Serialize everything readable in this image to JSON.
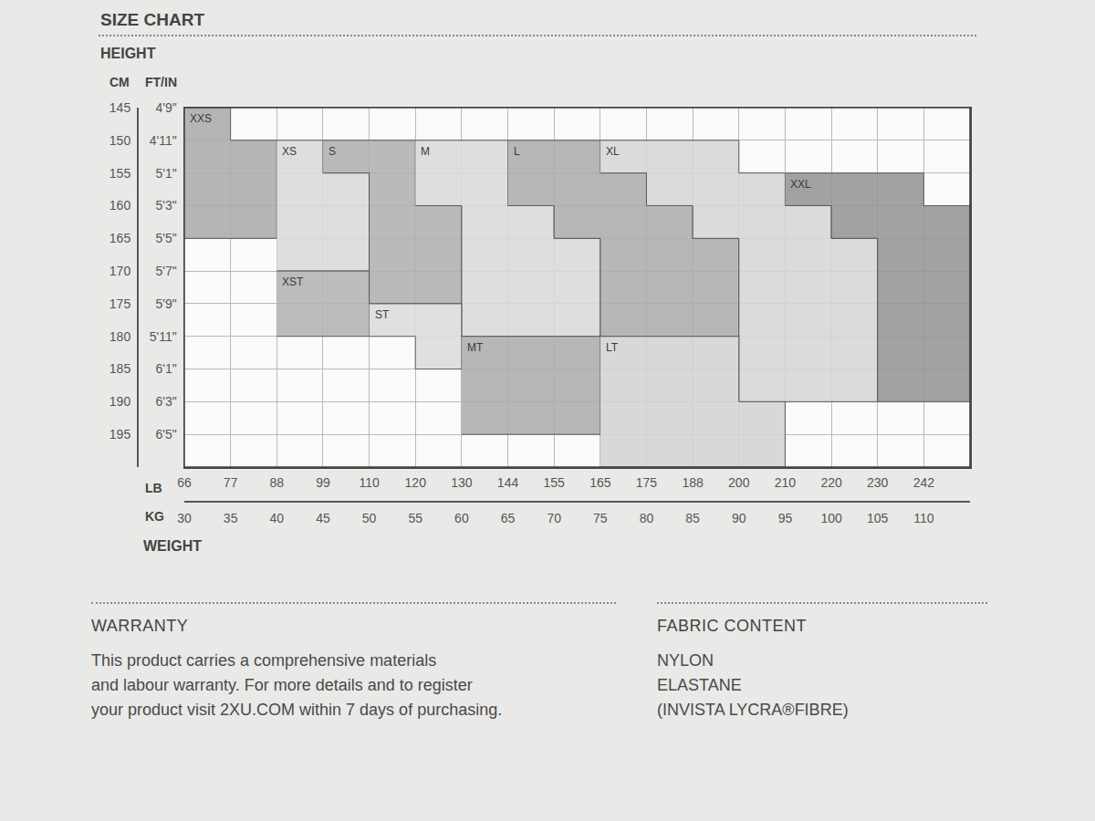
{
  "chart_data": {
    "type": "region",
    "title": "SIZE CHART",
    "x_label": "WEIGHT",
    "y_label": "HEIGHT",
    "x_unit": "KG",
    "x2_unit": "LB",
    "y_unit": "FT/IN",
    "y2_unit": "CM",
    "xlim": [
      30,
      115
    ],
    "xticks": [
      30,
      35,
      40,
      45,
      50,
      55,
      60,
      65,
      70,
      75,
      80,
      85,
      90,
      95,
      100,
      105,
      110
    ],
    "x2lim": [
      30,
      115
    ],
    "x2ticks": [
      {
        "value": 30,
        "label": "66"
      },
      {
        "value": 35,
        "label": "77"
      },
      {
        "value": 40,
        "label": "88"
      },
      {
        "value": 45,
        "label": "99"
      },
      {
        "value": 50,
        "label": "110"
      },
      {
        "value": 55,
        "label": "120"
      },
      {
        "value": 60,
        "label": "130"
      },
      {
        "value": 65,
        "label": "144"
      },
      {
        "value": 70,
        "label": "155"
      },
      {
        "value": 75,
        "label": "165"
      },
      {
        "value": 80,
        "label": "175"
      },
      {
        "value": 85,
        "label": "188"
      },
      {
        "value": 90,
        "label": "200"
      },
      {
        "value": 95,
        "label": "210"
      },
      {
        "value": 100,
        "label": "220"
      },
      {
        "value": 105,
        "label": "230"
      },
      {
        "value": 110,
        "label": "242"
      }
    ],
    "ylim": [
      200,
      145
    ],
    "yticks": [
      {
        "value": 145,
        "label": "4'9\""
      },
      {
        "value": 150,
        "label": "4'11\""
      },
      {
        "value": 155,
        "label": "5'1\""
      },
      {
        "value": 160,
        "label": "5'3\""
      },
      {
        "value": 165,
        "label": "5'5\""
      },
      {
        "value": 170,
        "label": "5'7\""
      },
      {
        "value": 175,
        "label": "5'9\""
      },
      {
        "value": 180,
        "label": "5'11\""
      },
      {
        "value": 185,
        "label": "6'1\""
      },
      {
        "value": 190,
        "label": "6'3\""
      },
      {
        "value": 195,
        "label": "6'5\""
      }
    ],
    "y2lim": [
      200,
      145
    ],
    "y2ticks": [
      145,
      150,
      155,
      160,
      165,
      170,
      175,
      180,
      185,
      190,
      195
    ],
    "grid": true,
    "series": [
      {
        "name": "XXS",
        "color": "#ababab",
        "x": [
          30,
          35,
          35,
          40,
          40,
          30
        ],
        "y": [
          145,
          145,
          150,
          150,
          165,
          165
        ]
      },
      {
        "name": "XS",
        "color": "#d9d9d9",
        "x": [
          40,
          45,
          45,
          50,
          50,
          40
        ],
        "y": [
          150,
          150,
          155,
          155,
          170,
          170
        ]
      },
      {
        "name": "S",
        "color": "#b0b0b0",
        "x": [
          45,
          55,
          55,
          60,
          60,
          50,
          50,
          45
        ],
        "y": [
          150,
          150,
          160,
          160,
          175,
          175,
          155,
          155
        ]
      },
      {
        "name": "M",
        "color": "#dadada",
        "x": [
          55,
          65,
          65,
          70,
          70,
          75,
          75,
          60,
          60,
          55
        ],
        "y": [
          150,
          150,
          160,
          160,
          165,
          165,
          180,
          180,
          160,
          160
        ]
      },
      {
        "name": "L",
        "color": "#adadad",
        "x": [
          65,
          75,
          75,
          80,
          80,
          85,
          85,
          90,
          90,
          75,
          75,
          70,
          70,
          65
        ],
        "y": [
          150,
          150,
          155,
          155,
          160,
          160,
          165,
          165,
          180,
          180,
          165,
          165,
          160,
          160
        ]
      },
      {
        "name": "XL",
        "color": "#d6d6d6",
        "x": [
          75,
          90,
          90,
          95,
          95,
          100,
          100,
          105,
          105,
          90,
          90,
          85,
          85,
          80,
          80,
          75
        ],
        "y": [
          150,
          150,
          155,
          155,
          160,
          160,
          165,
          165,
          190,
          190,
          165,
          165,
          160,
          160,
          155,
          155
        ]
      },
      {
        "name": "XXL",
        "color": "#959595",
        "x": [
          95,
          110,
          110,
          115,
          115,
          105,
          105,
          100,
          100,
          95
        ],
        "y": [
          155,
          155,
          160,
          160,
          190,
          190,
          165,
          165,
          160,
          160
        ]
      },
      {
        "name": "XST",
        "color": "#b3b3b3",
        "x": [
          40,
          50,
          50,
          40
        ],
        "y": [
          170,
          170,
          180,
          180
        ]
      },
      {
        "name": "ST",
        "color": "#dcdcdc",
        "x": [
          50,
          60,
          60,
          55,
          55,
          50
        ],
        "y": [
          175,
          175,
          185,
          185,
          180,
          180
        ]
      },
      {
        "name": "MT",
        "color": "#adadad",
        "x": [
          60,
          75,
          75,
          60
        ],
        "y": [
          180,
          180,
          195,
          195
        ]
      },
      {
        "name": "LT",
        "color": "#d3d3d3",
        "x": [
          75,
          90,
          90,
          95,
          95,
          75
        ],
        "y": [
          180,
          180,
          190,
          190,
          200,
          200
        ]
      }
    ]
  },
  "warranty": {
    "heading": "WARRANTY",
    "lines": [
      "This product carries a comprehensive materials",
      "and labour warranty. For more details and to register",
      "your product visit 2XU.COM within 7 days of purchasing."
    ]
  },
  "fabric_content": {
    "heading": "FABRIC CONTENT",
    "lines": [
      "NYLON",
      "ELASTANE",
      "(INVISTA LYCRA®FIBRE)"
    ]
  }
}
